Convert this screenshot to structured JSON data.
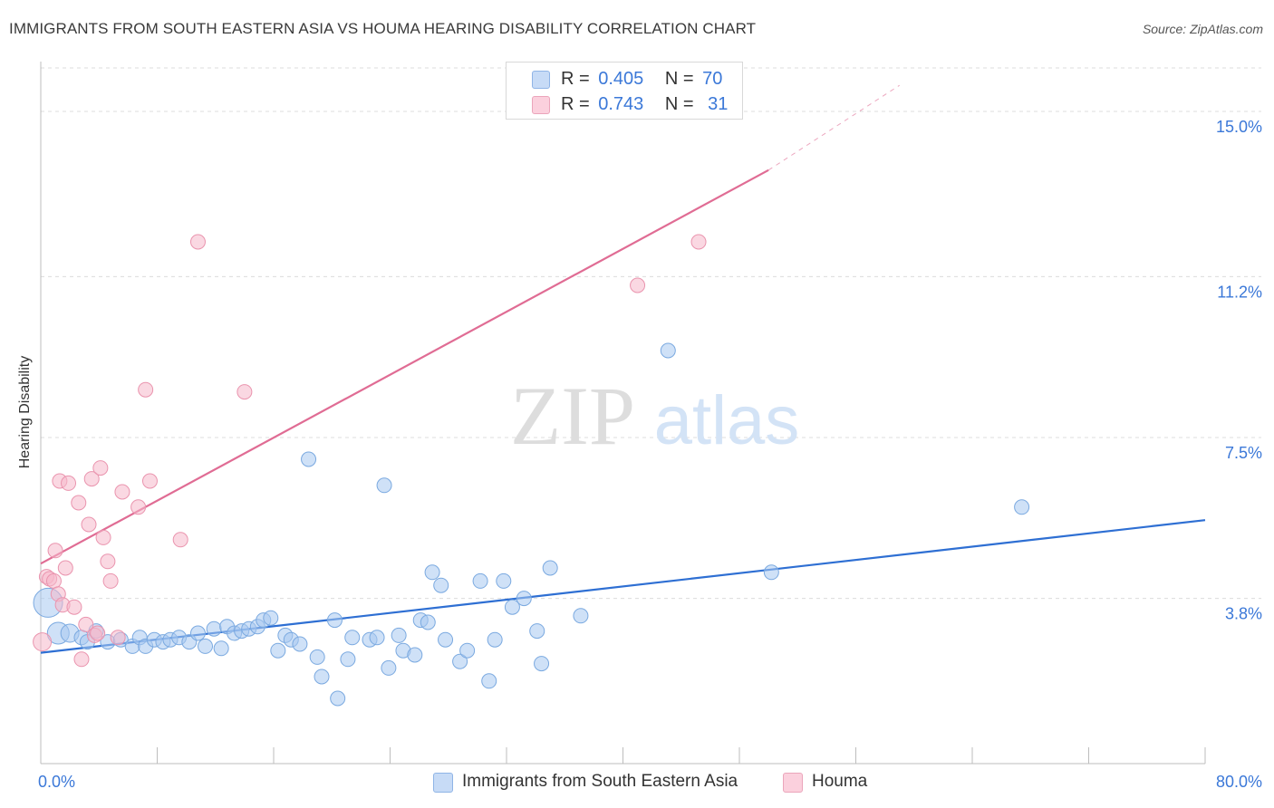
{
  "chart_data": {
    "type": "scatter",
    "title": "IMMIGRANTS FROM SOUTH EASTERN ASIA VS HOUMA HEARING DISABILITY CORRELATION CHART",
    "source": "Source: ZipAtlas.com",
    "xlabel": "",
    "ylabel": "Hearing Disability",
    "xlim": [
      0,
      80
    ],
    "ylim": [
      0,
      16
    ],
    "x_tick_labels": [
      "0.0%",
      "80.0%"
    ],
    "y_ticks": [
      3.8,
      7.5,
      11.2,
      15.0
    ],
    "y_tick_labels": [
      "3.8%",
      "7.5%",
      "11.2%",
      "15.0%"
    ],
    "grid": "horizontal dashed",
    "watermark": {
      "zip": "ZIP",
      "atlas": "atlas"
    },
    "legend_stats": [
      {
        "r_label": "R =",
        "r_value": "0.405",
        "n_label": "N =",
        "n_value": "70",
        "color": "#a8c8f0"
      },
      {
        "r_label": "R =",
        "r_value": "0.743",
        "n_label": "N =",
        "n_value": "31",
        "color": "#f5b8ca"
      }
    ],
    "series": [
      {
        "name": "Immigrants from South Eastern Asia",
        "color": "#a8c8f0",
        "stroke": "#7aa9e0",
        "trend_color": "#2e6fd3",
        "trend": {
          "x0": 0,
          "y0": 2.55,
          "x1": 80,
          "y1": 5.6
        },
        "points": [
          [
            0.5,
            3.7,
            16
          ],
          [
            1.2,
            3.0,
            12
          ],
          [
            2.0,
            3.0,
            10
          ],
          [
            2.8,
            2.9,
            8
          ],
          [
            3.2,
            2.8,
            8
          ],
          [
            3.8,
            3.05,
            8
          ],
          [
            4.6,
            2.8,
            8
          ],
          [
            5.5,
            2.85,
            8
          ],
          [
            6.3,
            2.7,
            8
          ],
          [
            6.8,
            2.9,
            8
          ],
          [
            7.2,
            2.7,
            8
          ],
          [
            7.8,
            2.85,
            8
          ],
          [
            8.4,
            2.8,
            8
          ],
          [
            8.9,
            2.85,
            8
          ],
          [
            9.5,
            2.9,
            8
          ],
          [
            10.2,
            2.8,
            8
          ],
          [
            10.8,
            3.0,
            8
          ],
          [
            11.3,
            2.7,
            8
          ],
          [
            11.9,
            3.1,
            8
          ],
          [
            12.4,
            2.65,
            8
          ],
          [
            12.8,
            3.15,
            8
          ],
          [
            13.3,
            3.0,
            8
          ],
          [
            13.8,
            3.05,
            8
          ],
          [
            14.3,
            3.1,
            8
          ],
          [
            14.9,
            3.15,
            8
          ],
          [
            15.3,
            3.3,
            8
          ],
          [
            15.8,
            3.35,
            8
          ],
          [
            16.3,
            2.6,
            8
          ],
          [
            16.8,
            2.95,
            8
          ],
          [
            17.2,
            2.85,
            8
          ],
          [
            17.8,
            2.75,
            8
          ],
          [
            18.4,
            7.0,
            8
          ],
          [
            19.0,
            2.45,
            8
          ],
          [
            19.3,
            2.0,
            8
          ],
          [
            20.2,
            3.3,
            8
          ],
          [
            20.4,
            1.5,
            8
          ],
          [
            21.1,
            2.4,
            8
          ],
          [
            21.4,
            2.9,
            8
          ],
          [
            22.6,
            2.85,
            8
          ],
          [
            23.1,
            2.9,
            8
          ],
          [
            23.6,
            6.4,
            8
          ],
          [
            23.9,
            2.2,
            8
          ],
          [
            24.6,
            2.95,
            8
          ],
          [
            24.9,
            2.6,
            8
          ],
          [
            25.7,
            2.5,
            8
          ],
          [
            26.1,
            3.3,
            8
          ],
          [
            26.6,
            3.25,
            8
          ],
          [
            26.9,
            4.4,
            8
          ],
          [
            27.5,
            4.1,
            8
          ],
          [
            27.8,
            2.85,
            8
          ],
          [
            28.8,
            2.35,
            8
          ],
          [
            29.3,
            2.6,
            8
          ],
          [
            30.2,
            4.2,
            8
          ],
          [
            30.8,
            1.9,
            8
          ],
          [
            31.2,
            2.85,
            8
          ],
          [
            31.8,
            4.2,
            8
          ],
          [
            32.4,
            3.6,
            8
          ],
          [
            33.2,
            3.8,
            8
          ],
          [
            34.1,
            3.05,
            8
          ],
          [
            34.4,
            2.3,
            8
          ],
          [
            35.0,
            4.5,
            8
          ],
          [
            37.1,
            3.4,
            8
          ],
          [
            43.1,
            9.5,
            8
          ],
          [
            50.2,
            4.4,
            8
          ],
          [
            67.4,
            5.9,
            8
          ]
        ]
      },
      {
        "name": "Houma",
        "color": "#f5b8ca",
        "stroke": "#ea94ae",
        "trend_color": "#e06c94",
        "trend": {
          "x0": 0,
          "y0": 4.6,
          "x1": 50,
          "y1": 13.65
        },
        "trend_dash": {
          "x0": 50,
          "y0": 13.65,
          "x1": 59,
          "y1": 15.6
        },
        "points": [
          [
            0.1,
            2.8,
            10
          ],
          [
            0.4,
            4.3,
            8
          ],
          [
            0.6,
            4.25,
            8
          ],
          [
            0.9,
            4.2,
            8
          ],
          [
            1.0,
            4.9,
            8
          ],
          [
            1.2,
            3.9,
            8
          ],
          [
            1.3,
            6.5,
            8
          ],
          [
            1.5,
            3.65,
            8
          ],
          [
            1.7,
            4.5,
            8
          ],
          [
            1.9,
            6.45,
            8
          ],
          [
            2.3,
            3.6,
            8
          ],
          [
            2.6,
            6.0,
            8
          ],
          [
            2.8,
            2.4,
            8
          ],
          [
            3.1,
            3.2,
            8
          ],
          [
            3.3,
            5.5,
            8
          ],
          [
            3.5,
            6.55,
            8
          ],
          [
            3.7,
            2.95,
            8
          ],
          [
            3.9,
            3.0,
            8
          ],
          [
            4.1,
            6.8,
            8
          ],
          [
            4.3,
            5.2,
            8
          ],
          [
            4.6,
            4.65,
            8
          ],
          [
            4.8,
            4.2,
            8
          ],
          [
            5.3,
            2.9,
            8
          ],
          [
            5.6,
            6.25,
            8
          ],
          [
            6.7,
            5.9,
            8
          ],
          [
            7.5,
            6.5,
            8
          ],
          [
            7.2,
            8.6,
            8
          ],
          [
            9.6,
            5.15,
            8
          ],
          [
            10.8,
            12.0,
            8
          ],
          [
            14.0,
            8.55,
            8
          ],
          [
            41.0,
            11.0,
            8
          ],
          [
            45.2,
            12.0,
            8
          ]
        ]
      }
    ]
  }
}
